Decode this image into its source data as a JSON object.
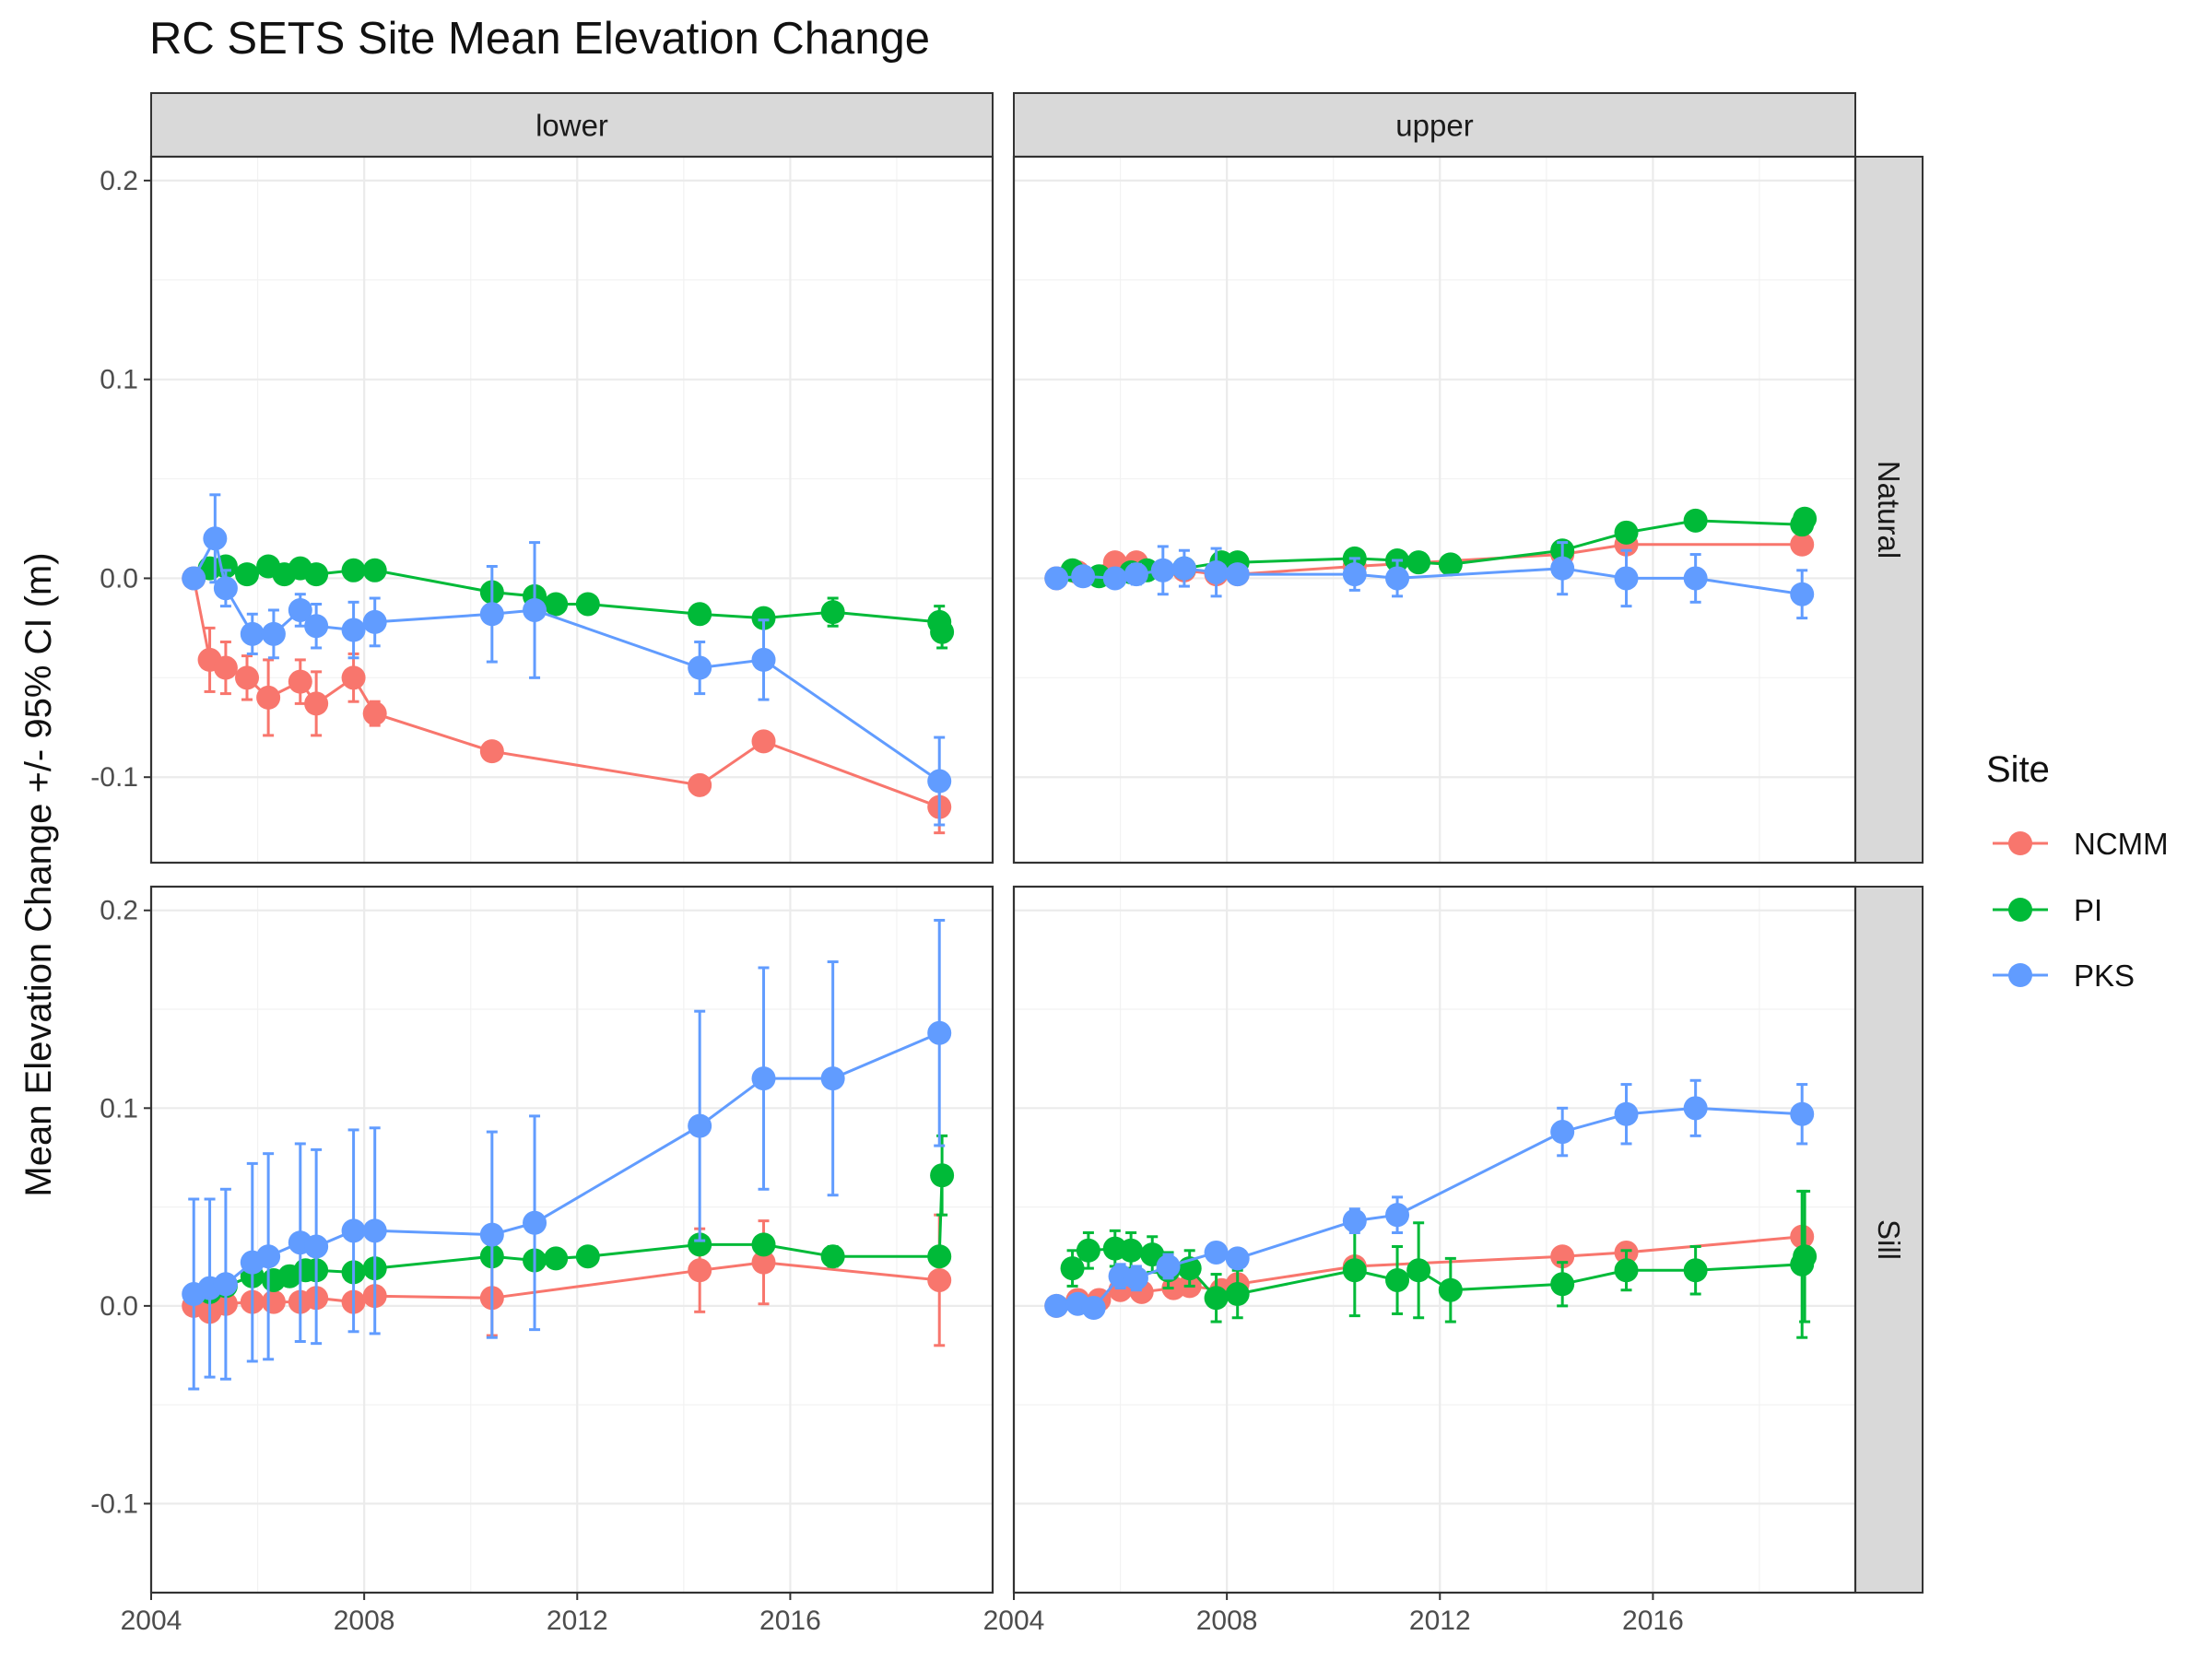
{
  "chart_data": {
    "type": "line",
    "title": "RC SETS Site Mean Elevation Change",
    "xlabel": "",
    "ylabel": "Mean Elevation Change +/- 95% CI (m)",
    "col_facets": [
      "lower",
      "upper"
    ],
    "row_facets": [
      "Natural",
      "Sill"
    ],
    "xlim": [
      2004,
      2019.8
    ],
    "x_ticks": [
      2004,
      2008,
      2012,
      2016
    ],
    "x_tick_labels": [
      "2004",
      "2008",
      "2012",
      "2016"
    ],
    "ylim_by_row": {
      "Natural": [
        -0.143,
        0.212
      ],
      "Sill": [
        -0.145,
        0.212
      ]
    },
    "y_ticks": [
      -0.1,
      0.0,
      0.1,
      0.2
    ],
    "y_tick_labels": [
      "-0.1",
      "0.0",
      "0.1",
      "0.2"
    ],
    "grid": true,
    "legend": {
      "title": "Site",
      "position": "right",
      "entries": [
        "NCMM",
        "PI",
        "PKS"
      ]
    },
    "colors": {
      "NCMM": "#F8766D",
      "PI": "#00BA38",
      "PKS": "#619CFF"
    },
    "panels": [
      {
        "col": "lower",
        "row": "Natural",
        "series": [
          {
            "name": "NCMM",
            "x": [
              2004.8,
              2005.1,
              2005.4,
              2005.8,
              2006.2,
              2006.8,
              2007.1,
              2007.8,
              2008.2,
              2010.4,
              2014.3,
              2015.5,
              2018.8
            ],
            "y": [
              0.0,
              -0.041,
              -0.045,
              -0.05,
              -0.06,
              -0.052,
              -0.063,
              -0.05,
              -0.068,
              -0.087,
              -0.104,
              -0.082,
              -0.115
            ],
            "err": [
              0.0,
              0.016,
              0.013,
              0.011,
              0.019,
              0.011,
              0.016,
              0.012,
              0.006,
              0.003,
              0.003,
              0.004,
              0.013
            ]
          },
          {
            "name": "PI",
            "x": [
              2005.1,
              2005.4,
              2005.8,
              2006.2,
              2006.5,
              2006.8,
              2007.1,
              2007.8,
              2008.2,
              2010.4,
              2011.2,
              2011.6,
              2012.2,
              2014.3,
              2015.5,
              2016.8,
              2018.8,
              2018.85
            ],
            "y": [
              0.005,
              0.006,
              0.002,
              0.006,
              0.002,
              0.005,
              0.002,
              0.004,
              0.004,
              -0.007,
              -0.009,
              -0.013,
              -0.013,
              -0.018,
              -0.02,
              -0.017,
              -0.022,
              -0.027
            ],
            "err": [
              0.003,
              0.003,
              0.003,
              0.003,
              0.003,
              0.003,
              0.003,
              0.003,
              0.003,
              0.003,
              0.003,
              0.003,
              0.003,
              0.004,
              0.003,
              0.007,
              0.008,
              0.008
            ]
          },
          {
            "name": "PKS",
            "x": [
              2004.8,
              2005.2,
              2005.4,
              2005.9,
              2006.3,
              2006.8,
              2007.1,
              2007.8,
              2008.2,
              2010.4,
              2011.2,
              2014.3,
              2015.5,
              2018.8
            ],
            "y": [
              0.0,
              0.02,
              -0.005,
              -0.028,
              -0.028,
              -0.016,
              -0.024,
              -0.026,
              -0.022,
              -0.018,
              -0.016,
              -0.045,
              -0.041,
              -0.102
            ],
            "err": [
              0.0,
              0.022,
              0.009,
              0.01,
              0.012,
              0.008,
              0.011,
              0.014,
              0.012,
              0.024,
              0.034,
              0.013,
              0.02,
              0.022
            ]
          }
        ]
      },
      {
        "col": "upper",
        "row": "Natural",
        "series": [
          {
            "name": "NCMM",
            "x": [
              2004.8,
              2005.2,
              2005.9,
              2006.3,
              2007.2,
              2007.8,
              2008.2,
              2010.4,
              2014.3,
              2015.5,
              2018.8
            ],
            "y": [
              0.0,
              0.003,
              0.008,
              0.008,
              0.004,
              0.002,
              0.002,
              0.006,
              0.012,
              0.017,
              0.017
            ],
            "err": [
              0.0,
              0.002,
              0.002,
              0.002,
              0.002,
              0.002,
              0.002,
              0.002,
              0.002,
              0.002,
              0.002
            ]
          },
          {
            "name": "PI",
            "x": [
              2005.1,
              2005.6,
              2006.2,
              2006.5,
              2007.2,
              2007.9,
              2008.2,
              2010.4,
              2011.2,
              2011.6,
              2012.2,
              2014.3,
              2015.5,
              2016.8,
              2018.8,
              2018.85
            ],
            "y": [
              0.004,
              0.001,
              0.003,
              0.004,
              0.005,
              0.008,
              0.008,
              0.01,
              0.009,
              0.008,
              0.007,
              0.014,
              0.023,
              0.029,
              0.027,
              0.03
            ],
            "err": [
              0.002,
              0.002,
              0.002,
              0.002,
              0.002,
              0.002,
              0.002,
              0.002,
              0.002,
              0.002,
              0.002,
              0.002,
              0.002,
              0.002,
              0.002,
              0.002
            ]
          },
          {
            "name": "PKS",
            "x": [
              2004.8,
              2005.3,
              2005.9,
              2006.3,
              2006.8,
              2007.2,
              2007.8,
              2008.2,
              2010.4,
              2011.2,
              2014.3,
              2015.5,
              2016.8,
              2018.8
            ],
            "y": [
              0.0,
              0.001,
              0.0,
              0.002,
              0.004,
              0.005,
              0.003,
              0.002,
              0.002,
              0.0,
              0.005,
              0.0,
              0.0,
              -0.008
            ],
            "err": [
              0.0,
              0.004,
              0.003,
              0.005,
              0.012,
              0.009,
              0.012,
              0.004,
              0.008,
              0.009,
              0.013,
              0.014,
              0.012,
              0.012
            ]
          }
        ]
      },
      {
        "col": "lower",
        "row": "Sill",
        "series": [
          {
            "name": "NCMM",
            "x": [
              2004.8,
              2005.1,
              2005.4,
              2005.9,
              2006.3,
              2006.8,
              2007.1,
              2007.8,
              2008.2,
              2010.4,
              2014.3,
              2015.5,
              2018.8
            ],
            "y": [
              0.0,
              -0.003,
              0.001,
              0.002,
              0.002,
              0.002,
              0.004,
              0.002,
              0.005,
              0.004,
              0.018,
              0.022,
              0.013
            ],
            "err": [
              0.0,
              0.004,
              0.004,
              0.004,
              0.004,
              0.004,
              0.004,
              0.004,
              0.004,
              0.019,
              0.021,
              0.021,
              0.033
            ]
          },
          {
            "name": "PI",
            "x": [
              2005.1,
              2005.4,
              2005.9,
              2006.3,
              2006.6,
              2006.9,
              2007.1,
              2007.8,
              2008.2,
              2010.4,
              2011.2,
              2011.6,
              2012.2,
              2014.3,
              2015.5,
              2016.8,
              2018.8,
              2018.85
            ],
            "y": [
              0.007,
              0.01,
              0.015,
              0.013,
              0.015,
              0.018,
              0.018,
              0.017,
              0.019,
              0.025,
              0.023,
              0.024,
              0.025,
              0.031,
              0.031,
              0.025,
              0.025,
              0.066
            ],
            "err": [
              0.003,
              0.003,
              0.003,
              0.003,
              0.003,
              0.003,
              0.003,
              0.003,
              0.003,
              0.003,
              0.003,
              0.003,
              0.003,
              0.003,
              0.003,
              0.005,
              0.004,
              0.02
            ]
          },
          {
            "name": "PKS",
            "x": [
              2004.8,
              2005.1,
              2005.4,
              2005.9,
              2006.2,
              2006.8,
              2007.1,
              2007.8,
              2008.2,
              2010.4,
              2011.2,
              2014.3,
              2015.5,
              2016.8,
              2018.8
            ],
            "y": [
              0.006,
              0.009,
              0.011,
              0.022,
              0.025,
              0.032,
              0.03,
              0.038,
              0.038,
              0.036,
              0.042,
              0.091,
              0.115,
              0.115,
              0.138
            ],
            "err": [
              0.048,
              0.045,
              0.048,
              0.05,
              0.052,
              0.05,
              0.049,
              0.051,
              0.052,
              0.052,
              0.054,
              0.058,
              0.056,
              0.059,
              0.057
            ]
          }
        ]
      },
      {
        "col": "upper",
        "row": "Sill",
        "series": [
          {
            "name": "NCMM",
            "x": [
              2004.8,
              2005.2,
              2005.6,
              2006.0,
              2006.4,
              2007.0,
              2007.3,
              2007.9,
              2008.2,
              2010.4,
              2014.3,
              2015.5,
              2018.8
            ],
            "y": [
              0.0,
              0.003,
              0.003,
              0.008,
              0.007,
              0.009,
              0.01,
              0.008,
              0.011,
              0.02,
              0.025,
              0.027,
              0.035
            ],
            "err": [
              0.0,
              0.004,
              0.004,
              0.004,
              0.004,
              0.004,
              0.004,
              0.004,
              0.004,
              0.004,
              0.004,
              0.004,
              0.004
            ]
          },
          {
            "name": "PI",
            "x": [
              2005.1,
              2005.4,
              2005.9,
              2006.2,
              2006.6,
              2006.9,
              2007.3,
              2007.8,
              2008.2,
              2010.4,
              2011.2,
              2011.6,
              2012.2,
              2014.3,
              2015.5,
              2016.8,
              2018.8,
              2018.85
            ],
            "y": [
              0.019,
              0.028,
              0.029,
              0.028,
              0.026,
              0.018,
              0.019,
              0.004,
              0.006,
              0.018,
              0.013,
              0.018,
              0.008,
              0.011,
              0.018,
              0.018,
              0.021,
              0.025
            ],
            "err": [
              0.009,
              0.009,
              0.009,
              0.009,
              0.009,
              0.009,
              0.009,
              0.012,
              0.012,
              0.023,
              0.017,
              0.024,
              0.016,
              0.011,
              0.01,
              0.012,
              0.037,
              0.033
            ]
          },
          {
            "name": "PKS",
            "x": [
              2004.8,
              2005.2,
              2005.5,
              2006.0,
              2006.3,
              2006.9,
              2007.8,
              2008.2,
              2010.4,
              2011.2,
              2014.3,
              2015.5,
              2016.8,
              2018.8
            ],
            "y": [
              0.0,
              0.001,
              -0.001,
              0.015,
              0.014,
              0.02,
              0.027,
              0.024,
              0.043,
              0.046,
              0.088,
              0.097,
              0.1,
              0.097
            ],
            "err": [
              0.0,
              0.004,
              0.004,
              0.006,
              0.006,
              0.006,
              0.004,
              0.004,
              0.006,
              0.009,
              0.012,
              0.015,
              0.014,
              0.015
            ]
          }
        ]
      }
    ]
  }
}
